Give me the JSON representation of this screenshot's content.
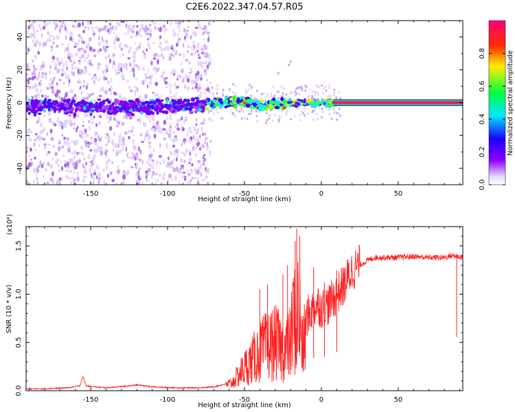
{
  "figure": {
    "title": "C2E6.2022.347.04.57.R05"
  },
  "chart_data": [
    {
      "type": "heatmap",
      "title": "C2E6.2022.347.04.57.R05",
      "xlabel": "Height of straight line (km)",
      "ylabel": "Frequency (Hz)",
      "xlim": [
        -192,
        92
      ],
      "ylim": [
        -50,
        50
      ],
      "xticks": [
        -150,
        -100,
        -50,
        0,
        50
      ],
      "xtick_labels": [
        "-150",
        "-100",
        "-50",
        "0",
        "50"
      ],
      "yticks": [
        -40,
        -20,
        0,
        20,
        40
      ],
      "ytick_labels": [
        "-40",
        "-20",
        "0",
        "20",
        "40"
      ],
      "colorbar": {
        "label": "Normalized spectral amplitude",
        "range": [
          0.0,
          1.0
        ],
        "ticks": [
          0.0,
          0.2,
          0.4,
          0.6,
          0.8
        ],
        "tick_labels": [
          "0.0",
          "0.2",
          "0.4",
          "0.6",
          "0.8"
        ],
        "colormap": [
          "#ffffff",
          "#8a00ff",
          "#1e00ff",
          "#00e8ff",
          "#00ff40",
          "#ffee00",
          "#ff2a00",
          "#ff0080"
        ]
      },
      "ridge": {
        "x": [
          -192,
          -170,
          -150,
          -130,
          -110,
          -90,
          -75,
          -60,
          -50,
          -40,
          -30,
          -20,
          -10,
          0,
          8,
          20,
          50,
          92
        ],
        "y": [
          -2.5,
          -2.5,
          -3,
          -2.5,
          -2.5,
          -2,
          -1,
          1,
          0.5,
          -2,
          -1,
          -0.5,
          0,
          -0.5,
          0,
          0,
          0,
          0
        ]
      }
    },
    {
      "type": "line",
      "xlabel": "Height of straight line (km)",
      "ylabel": "SNR (10 * v/v)",
      "y_exponent_label": "(x10⁴)",
      "xlim": [
        -192,
        92
      ],
      "ylim": [
        0.0,
        1.7
      ],
      "xticks": [
        -150,
        -100,
        -50,
        0,
        50
      ],
      "xtick_labels": [
        "-150",
        "-100",
        "-50",
        "0",
        "50"
      ],
      "yticks": [
        0.0,
        0.5,
        1.0,
        1.5
      ],
      "ytick_labels": [
        "0.0",
        "0.5",
        "1.0",
        "1.5"
      ],
      "series": [
        {
          "name": "SNR",
          "color": "#ff2020",
          "x": [
            -192,
            -180,
            -165,
            -157,
            -155,
            -153,
            -140,
            -125,
            -120,
            -110,
            -95,
            -80,
            -70,
            -62,
            -58,
            -55,
            -52,
            -48,
            -45,
            -42,
            -38,
            -35,
            -32,
            -30,
            -28,
            -25,
            -22,
            -20,
            -18,
            -16,
            -15,
            -12,
            -10,
            -8,
            -5,
            -2,
            0,
            5,
            10,
            15,
            20,
            25,
            30,
            35,
            40,
            50,
            60,
            70,
            80,
            85,
            92
          ],
          "y": [
            0.02,
            0.02,
            0.03,
            0.05,
            0.15,
            0.05,
            0.03,
            0.05,
            0.06,
            0.04,
            0.03,
            0.03,
            0.04,
            0.07,
            0.1,
            0.17,
            0.24,
            0.33,
            0.38,
            0.45,
            0.52,
            0.56,
            0.58,
            0.6,
            0.57,
            0.5,
            0.55,
            0.6,
            0.95,
            0.75,
            1.1,
            0.5,
            0.75,
            0.8,
            0.85,
            0.9,
            0.85,
            0.9,
            1.0,
            1.1,
            1.25,
            1.3,
            1.35,
            1.38,
            1.38,
            1.38,
            1.39,
            1.38,
            1.38,
            1.4,
            1.38
          ],
          "spikes": [
            {
              "x": -40,
              "y": 1.05
            },
            {
              "x": -35,
              "y": 1.1
            },
            {
              "x": -25,
              "y": 1.2
            },
            {
              "x": -22,
              "y": 1.3
            },
            {
              "x": -17,
              "y": 1.55
            },
            {
              "x": -16,
              "y": 1.68
            },
            {
              "x": -14,
              "y": 1.6
            },
            {
              "x": -5,
              "y": 1.28
            },
            {
              "x": 2,
              "y": 1.12
            },
            {
              "x": 10,
              "y": 1.25
            },
            {
              "x": 88,
              "y": 1.42
            }
          ]
        }
      ]
    }
  ]
}
